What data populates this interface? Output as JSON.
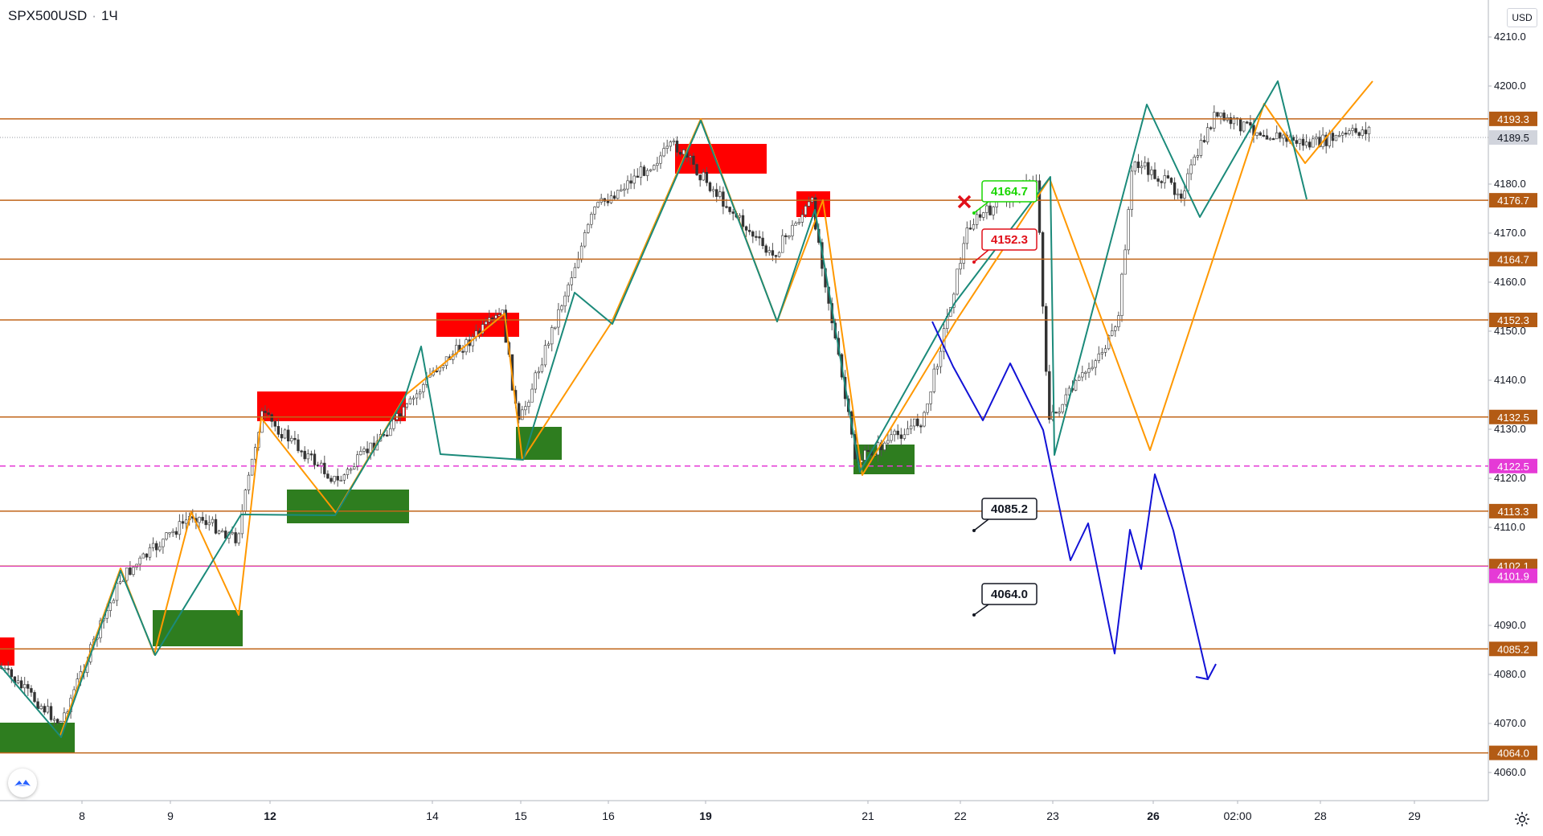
{
  "header": {
    "symbol": "SPX500USD",
    "separator": "·",
    "interval": "1Ч"
  },
  "currency_button": "USD",
  "price_axis": {
    "ticks": [
      "4210.0",
      "4200.0",
      "4180.0",
      "4170.0",
      "4160.0",
      "4150.0",
      "4140.0",
      "4130.0",
      "4120.0",
      "4110.0",
      "4090.0",
      "4080.0",
      "4070.0",
      "4060.0"
    ]
  },
  "time_axis": {
    "ticks": [
      {
        "label": "8",
        "bold": false
      },
      {
        "label": "9",
        "bold": false
      },
      {
        "label": "12",
        "bold": true
      },
      {
        "label": "14",
        "bold": false
      },
      {
        "label": "15",
        "bold": false
      },
      {
        "label": "16",
        "bold": false
      },
      {
        "label": "19",
        "bold": true
      },
      {
        "label": "21",
        "bold": false
      },
      {
        "label": "22",
        "bold": false
      },
      {
        "label": "23",
        "bold": false
      },
      {
        "label": "26",
        "bold": true
      },
      {
        "label": "02:00",
        "bold": false
      },
      {
        "label": "28",
        "bold": false
      },
      {
        "label": "29",
        "bold": false
      }
    ]
  },
  "levels": [
    {
      "value": "4193.3",
      "color": "#c0651a"
    },
    {
      "value": "4176.7",
      "color": "#c0651a"
    },
    {
      "value": "4164.7",
      "color": "#c0651a"
    },
    {
      "value": "4152.3",
      "color": "#c0651a"
    },
    {
      "value": "4132.5",
      "color": "#c0651a"
    },
    {
      "value": "4113.3",
      "color": "#c0651a"
    },
    {
      "value": "4102.1",
      "color": "#c0651a"
    },
    {
      "value": "4085.2",
      "color": "#c0651a"
    },
    {
      "value": "4064.0",
      "color": "#c0651a"
    }
  ],
  "dashed_level": {
    "value": "4122.5",
    "color": "#e53ad6"
  },
  "magenta_level": {
    "value": "4101.9",
    "color": "#e53ad6"
  },
  "current_price": {
    "value": "4189.5"
  },
  "callouts": [
    {
      "text": "4164.7",
      "color": "#19d600"
    },
    {
      "text": "4152.3",
      "color": "#e0101a"
    },
    {
      "text": "4085.2",
      "color": "#131722"
    },
    {
      "text": "4064.0",
      "color": "#131722"
    }
  ],
  "colors": {
    "level_line": "#c0651a",
    "orange_wave": "#ff9800",
    "teal_wave": "#1b8a7a",
    "projection": "#1212d6",
    "supply_zone": "#ff0000",
    "demand_zone": "#2e7d1f",
    "up_candle": "#333333"
  },
  "icons": {
    "gear": "gear-icon",
    "logo": "tradingview-logo-icon",
    "cancel": "red-x-icon"
  }
}
